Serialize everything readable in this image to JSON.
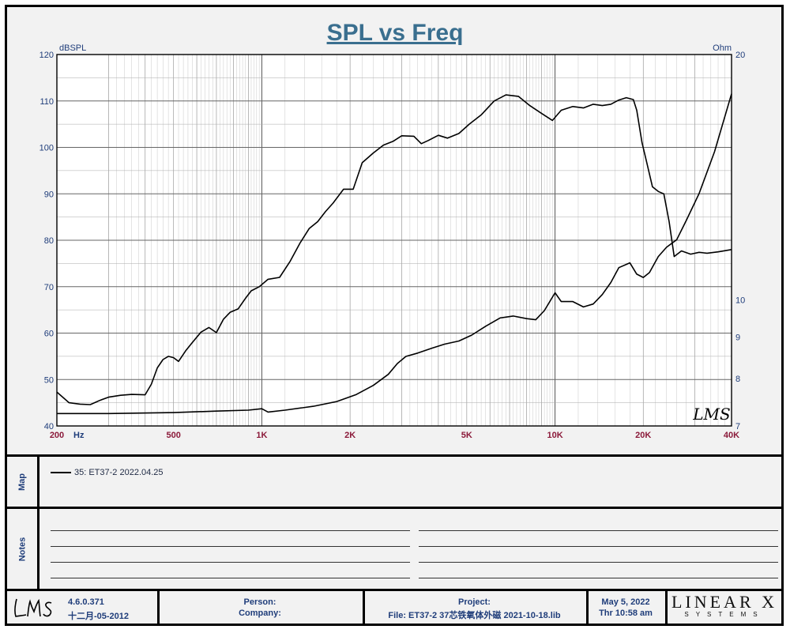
{
  "chart_data": {
    "type": "line",
    "title": "SPL vs Freq",
    "y_left_label": "dBSPL",
    "y_right_label": "Ohm",
    "x_unit_label": "Hz",
    "x_scale": "log",
    "xlim": [
      200,
      40000
    ],
    "ylim_left": [
      40,
      120
    ],
    "ylim_right": [
      7,
      20
    ],
    "x_tick_labels": [
      "200",
      "500",
      "1K",
      "2K",
      "5K",
      "10K",
      "20K",
      "40K"
    ],
    "y_left_ticks": [
      "40",
      "50",
      "60",
      "70",
      "80",
      "90",
      "100",
      "110",
      "120"
    ],
    "y_right_ticks": [
      "7",
      "8",
      "9",
      "10",
      "20"
    ],
    "grid": true,
    "watermark": "LMS",
    "series": [
      {
        "axis": "left",
        "x": [
          200,
          220,
          240,
          260,
          280,
          300,
          330,
          360,
          400,
          420,
          440,
          460,
          480,
          500,
          520,
          550,
          580,
          620,
          660,
          700,
          740,
          780,
          830,
          880,
          920,
          980,
          1050,
          1150,
          1250,
          1350,
          1450,
          1550,
          1650,
          1750,
          1900,
          2050,
          2200,
          2400,
          2600,
          2800,
          3000,
          3300,
          3500,
          3700,
          4000,
          4300,
          4700,
          5100,
          5600,
          6200,
          6800,
          7500,
          8200,
          9000,
          9800,
          10500,
          11500,
          12500,
          13500,
          14500,
          15500,
          16500,
          17500,
          18500,
          19000,
          19800,
          20500,
          21500,
          22500,
          23500,
          24500,
          25500,
          27000,
          29000,
          31000,
          33000,
          36000,
          40000
        ],
        "y": [
          47.3,
          45.0,
          44.7,
          44.6,
          45.5,
          46.2,
          46.6,
          46.8,
          46.7,
          49.0,
          52.5,
          54.3,
          55.0,
          54.7,
          53.9,
          56.2,
          58.0,
          60.2,
          61.2,
          60.1,
          63.0,
          64.5,
          65.2,
          67.5,
          69.1,
          70.0,
          71.6,
          72.0,
          75.5,
          79.4,
          82.5,
          84.0,
          86.2,
          88.0,
          91.0,
          91.0,
          96.7,
          98.8,
          100.5,
          101.3,
          102.5,
          102.4,
          100.8,
          101.5,
          102.6,
          102.0,
          103.0,
          105.0,
          107.0,
          110.0,
          111.3,
          111.0,
          109.0,
          107.3,
          105.8,
          108.0,
          108.8,
          108.5,
          109.3,
          109.0,
          109.3,
          110.2,
          110.7,
          110.3,
          108.0,
          101.0,
          97.0,
          91.5,
          90.5,
          90.0,
          84.0,
          76.5,
          77.7,
          77.0,
          77.4,
          77.2,
          77.5,
          78.0
        ]
      },
      {
        "axis": "right",
        "x": [
          200,
          300,
          500,
          700,
          900,
          1000,
          1050,
          1200,
          1500,
          1800,
          2100,
          2400,
          2700,
          2900,
          3100,
          3400,
          3800,
          4200,
          4700,
          5200,
          5800,
          6500,
          7200,
          8000,
          8600,
          9200,
          10000,
          10500,
          11500,
          12500,
          13500,
          14500,
          15500,
          16500,
          18000,
          19000,
          20000,
          21000,
          22500,
          24000,
          26000,
          28000,
          31000,
          35000,
          40000
        ],
        "y": [
          7.25,
          7.25,
          7.27,
          7.3,
          7.32,
          7.35,
          7.28,
          7.32,
          7.4,
          7.5,
          7.65,
          7.85,
          8.1,
          8.35,
          8.52,
          8.6,
          8.72,
          8.82,
          8.9,
          9.05,
          9.28,
          9.5,
          9.55,
          9.48,
          9.45,
          9.7,
          10.2,
          9.95,
          9.95,
          9.8,
          9.88,
          10.15,
          10.5,
          10.95,
          11.1,
          10.75,
          10.65,
          10.8,
          11.3,
          11.6,
          11.85,
          12.5,
          13.5,
          15.2,
          17.9
        ]
      }
    ]
  },
  "map": {
    "label": "Map",
    "entry": "35: ET37-2 2022.04.25"
  },
  "notes": {
    "label": "Notes"
  },
  "footer": {
    "version": "4.6.0.371",
    "build_date": "十二月-05-2012",
    "person_label": "Person:",
    "company_label": "Company:",
    "project_label": "Project:",
    "file_label": "File: ET37-2 37芯铁氧体外磁 2021-10-18.lib",
    "date": "May  5, 2022",
    "time": "Thr 10:58 am",
    "brand_top": "LINEAR X",
    "brand_bottom": "SYSTEMS"
  }
}
